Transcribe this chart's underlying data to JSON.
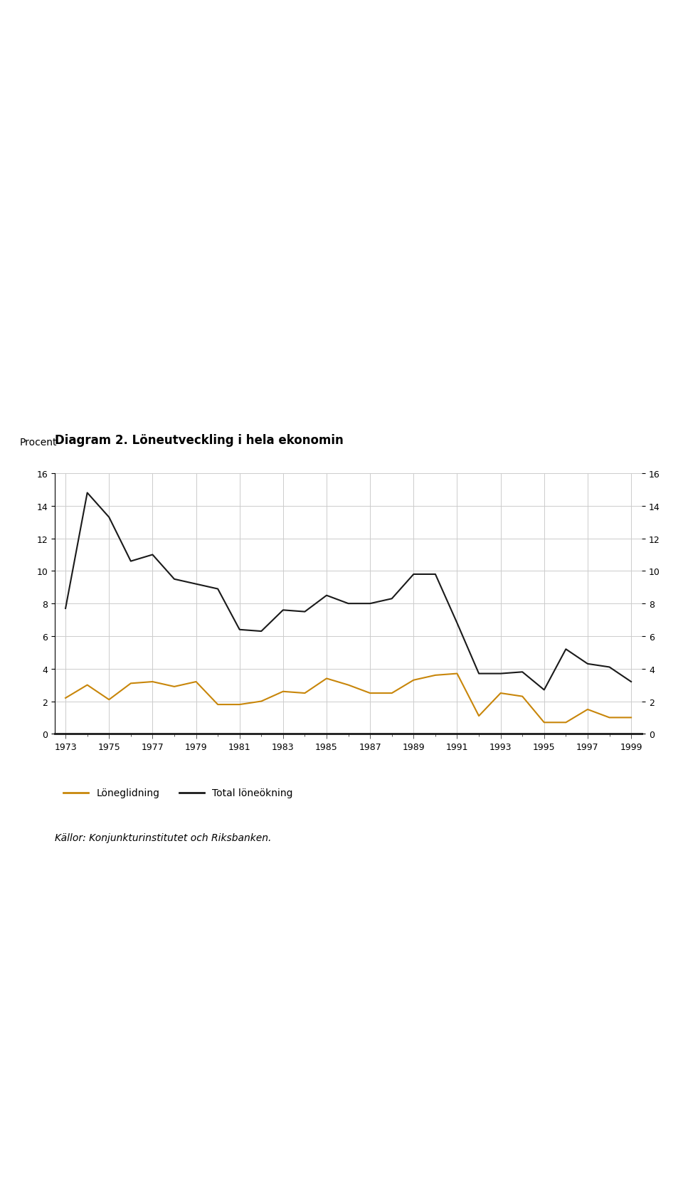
{
  "title": "Diagram 2. Löneutveckling i hela ekonomin",
  "ylabel": "Procent",
  "xlim": [
    1973,
    1999
  ],
  "ylim": [
    0,
    16
  ],
  "yticks": [
    0,
    2,
    4,
    6,
    8,
    10,
    12,
    14,
    16
  ],
  "xticks": [
    1973,
    1975,
    1977,
    1979,
    1981,
    1983,
    1985,
    1987,
    1989,
    1991,
    1993,
    1995,
    1997,
    1999
  ],
  "line1_label": "Total löneökning",
  "line1_color": "#1a1a1a",
  "line2_label": "Löneglidning",
  "line2_color": "#c8860a",
  "years": [
    1973,
    1974,
    1975,
    1976,
    1977,
    1978,
    1979,
    1980,
    1981,
    1982,
    1983,
    1984,
    1985,
    1986,
    1987,
    1988,
    1989,
    1990,
    1991,
    1992,
    1993,
    1994,
    1995,
    1996,
    1997,
    1998,
    1999
  ],
  "total_loneokning": [
    7.7,
    14.8,
    13.3,
    10.6,
    11.0,
    9.5,
    9.2,
    8.9,
    6.4,
    6.3,
    7.6,
    7.5,
    8.5,
    8.0,
    8.0,
    8.3,
    9.8,
    9.8,
    6.8,
    3.7,
    3.7,
    3.8,
    2.7,
    5.2,
    4.3,
    4.1,
    3.2
  ],
  "loneglidning": [
    2.2,
    3.0,
    2.1,
    3.1,
    3.2,
    2.9,
    3.2,
    1.8,
    1.8,
    2.0,
    2.6,
    2.5,
    3.4,
    3.0,
    2.5,
    2.5,
    3.3,
    3.6,
    3.7,
    1.1,
    2.5,
    2.3,
    0.7,
    0.7,
    1.5,
    1.0,
    1.0
  ],
  "background_color": "#ffffff",
  "grid_color": "#cccccc",
  "sources_text": "Källor: Konjunkturinstitutet och Riksbanken.",
  "title_fontsize": 12,
  "label_fontsize": 10,
  "tick_fontsize": 9
}
